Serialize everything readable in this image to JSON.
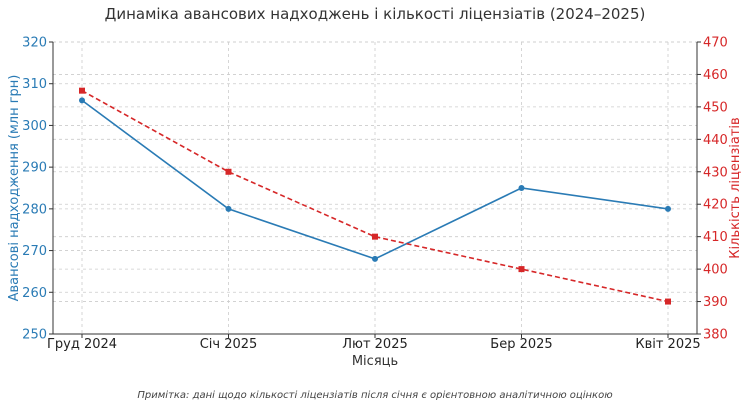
{
  "chart_data": {
    "type": "line",
    "title": "Динаміка авансових надходжень і кількості ліцензіатів (2024–2025)",
    "xlabel": "Місяць",
    "categories": [
      "Груд 2024",
      "Січ 2025",
      "Лют 2025",
      "Бер 2025",
      "Квіт 2025"
    ],
    "grid": true,
    "y_left": {
      "label": "Авансові надходження (млн грн)",
      "ylim": [
        250,
        320
      ],
      "ticks": [
        250,
        260,
        270,
        280,
        290,
        300,
        310,
        320
      ],
      "color": "#2a7bb5"
    },
    "y_right": {
      "label": "Кількість ліцензіатів",
      "ylim": [
        380,
        470
      ],
      "ticks": [
        380,
        390,
        400,
        410,
        420,
        430,
        440,
        450,
        460,
        470
      ],
      "color": "#d62728"
    },
    "series": [
      {
        "axis": "left",
        "values": [
          306,
          280,
          268,
          285,
          280
        ],
        "color": "#2a7bb5",
        "style": "solid",
        "marker": "circle"
      },
      {
        "axis": "right",
        "values": [
          455,
          430,
          410,
          400,
          390
        ],
        "color": "#d62728",
        "style": "dashed",
        "marker": "square"
      }
    ],
    "note": "Примітка: дані щодо кількості ліцензіатів після січня є орієнтовною аналітичною оцінкою"
  }
}
